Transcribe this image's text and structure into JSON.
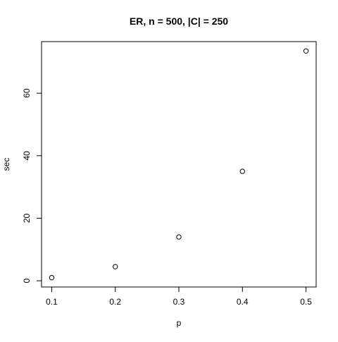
{
  "chart_data": {
    "type": "scatter",
    "title": "ER, n = 500, |C| = 250",
    "xlabel": "p",
    "ylabel": "sec",
    "x": [
      0.1,
      0.2,
      0.3,
      0.4,
      0.5
    ],
    "y": [
      1.0,
      4.5,
      14.0,
      35.0,
      73.5
    ],
    "xlim": [
      0.084,
      0.516
    ],
    "ylim": [
      -2.0,
      76.5
    ],
    "xticks": [
      0.1,
      0.2,
      0.3,
      0.4,
      0.5
    ],
    "xtick_labels": [
      "0.1",
      "0.2",
      "0.3",
      "0.4",
      "0.5"
    ],
    "yticks": [
      0,
      20,
      40,
      60
    ],
    "ytick_labels": [
      "0",
      "20",
      "40",
      "60"
    ],
    "grid": false,
    "legend": "none",
    "marker": "open-circle",
    "colors": {
      "marker": "#000000",
      "axes": "#000000",
      "background": "#ffffff"
    }
  }
}
